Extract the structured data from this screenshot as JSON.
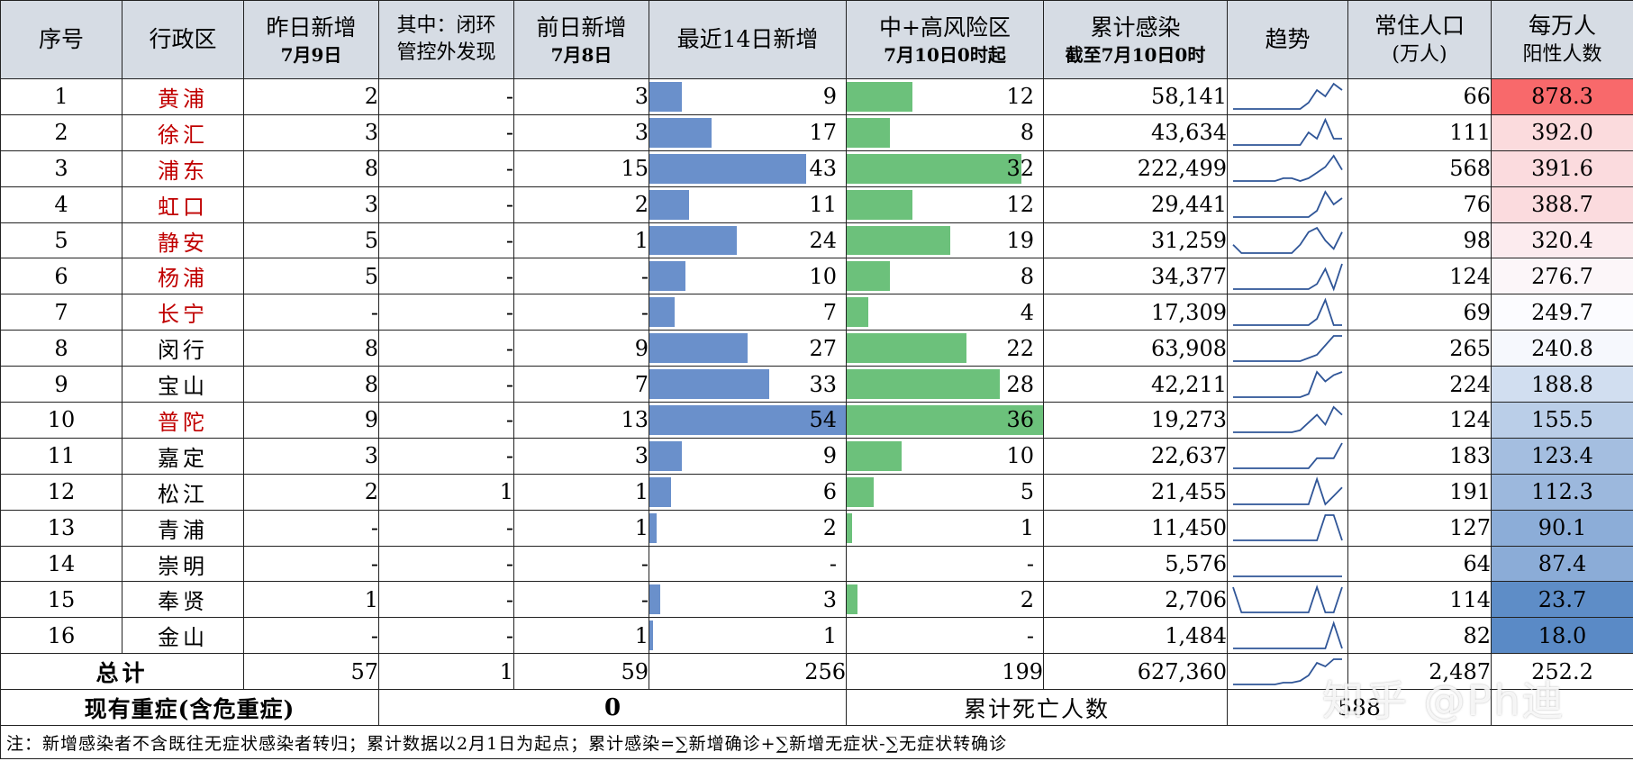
{
  "headers": {
    "seq": "序号",
    "district": "行政区",
    "yesterday_l1": "昨日新增",
    "yesterday_l2": "7月9日",
    "closed_l1": "其中：闭环",
    "closed_l2": "管控外发现",
    "daybefore_l1": "前日新增",
    "daybefore_l2": "7月8日",
    "recent14": "最近14日新增",
    "risk_l1": "中+高风险区",
    "risk_l2": "7月10日0时起",
    "cumulative_l1": "累计感染",
    "cumulative_l2": "截至7月10日0时",
    "trend": "趋势",
    "pop_l1": "常住人口",
    "pop_l2": "(万人)",
    "perm_l1": "每万人",
    "perm_l2": "阳性人数"
  },
  "rows": [
    {
      "seq": "1",
      "district": "黄浦",
      "red": true,
      "yesterday": "2",
      "closed": "-",
      "daybefore": "3",
      "recent14": "9",
      "recent14_value": 9,
      "risk": "12",
      "risk_value": 12,
      "cumulative": "58,141",
      "trend": [
        0,
        0,
        0,
        0,
        0,
        0,
        0,
        0,
        0,
        1,
        3,
        2,
        4,
        3
      ],
      "population": "66",
      "per_10k": "878.3",
      "per_10k_value": 878.3
    },
    {
      "seq": "2",
      "district": "徐汇",
      "red": true,
      "yesterday": "3",
      "closed": "-",
      "daybefore": "3",
      "recent14": "17",
      "recent14_value": 17,
      "risk": "8",
      "risk_value": 8,
      "cumulative": "43,634",
      "trend": [
        0,
        0,
        0,
        0,
        0,
        0,
        0,
        0,
        0,
        2,
        1,
        4,
        1,
        1
      ],
      "population": "111",
      "per_10k": "392.0",
      "per_10k_value": 392.0
    },
    {
      "seq": "3",
      "district": "浦东",
      "red": true,
      "yesterday": "8",
      "closed": "-",
      "daybefore": "15",
      "recent14": "43",
      "recent14_value": 43,
      "risk": "32",
      "risk_value": 32,
      "cumulative": "222,499",
      "trend": [
        0,
        0,
        0,
        0,
        0,
        0,
        1,
        1,
        0,
        1,
        3,
        5,
        9,
        4
      ],
      "population": "568",
      "per_10k": "391.6",
      "per_10k_value": 391.6
    },
    {
      "seq": "4",
      "district": "虹口",
      "red": true,
      "yesterday": "3",
      "closed": "-",
      "daybefore": "2",
      "recent14": "11",
      "recent14_value": 11,
      "risk": "12",
      "risk_value": 12,
      "cumulative": "29,441",
      "trend": [
        0,
        0,
        0,
        0,
        0,
        0,
        0,
        0,
        0,
        0,
        1,
        4,
        2,
        3
      ],
      "population": "76",
      "per_10k": "388.7",
      "per_10k_value": 388.7
    },
    {
      "seq": "5",
      "district": "静安",
      "red": true,
      "yesterday": "5",
      "closed": "-",
      "daybefore": "1",
      "recent14": "24",
      "recent14_value": 24,
      "risk": "19",
      "risk_value": 19,
      "cumulative": "31,259",
      "trend": [
        2,
        0,
        0,
        0,
        0,
        0,
        0,
        0,
        2,
        5,
        6,
        3,
        1,
        5
      ],
      "population": "98",
      "per_10k": "320.4",
      "per_10k_value": 320.4
    },
    {
      "seq": "6",
      "district": "杨浦",
      "red": true,
      "yesterday": "5",
      "closed": "-",
      "daybefore": "-",
      "recent14": "10",
      "recent14_value": 10,
      "risk": "8",
      "risk_value": 8,
      "cumulative": "34,377",
      "trend": [
        0,
        0,
        0,
        0,
        0,
        0,
        0,
        0,
        0,
        0,
        1,
        4,
        0,
        5
      ],
      "population": "124",
      "per_10k": "276.7",
      "per_10k_value": 276.7
    },
    {
      "seq": "7",
      "district": "长宁",
      "red": true,
      "yesterday": "-",
      "closed": "-",
      "daybefore": "-",
      "recent14": "7",
      "recent14_value": 7,
      "risk": "4",
      "risk_value": 4,
      "cumulative": "17,309",
      "trend": [
        0,
        0,
        0,
        0,
        0,
        0,
        0,
        0,
        0,
        0,
        1,
        4,
        0,
        0
      ],
      "population": "69",
      "per_10k": "249.7",
      "per_10k_value": 249.7
    },
    {
      "seq": "8",
      "district": "闵行",
      "red": false,
      "yesterday": "8",
      "closed": "-",
      "daybefore": "9",
      "recent14": "27",
      "recent14_value": 27,
      "risk": "22",
      "risk_value": 22,
      "cumulative": "63,908",
      "trend": [
        0,
        0,
        0,
        0,
        0,
        0,
        0,
        0,
        0,
        1,
        2,
        5,
        8,
        8
      ],
      "population": "265",
      "per_10k": "240.8",
      "per_10k_value": 240.8
    },
    {
      "seq": "9",
      "district": "宝山",
      "red": false,
      "yesterday": "8",
      "closed": "-",
      "daybefore": "7",
      "recent14": "33",
      "recent14_value": 33,
      "risk": "28",
      "risk_value": 28,
      "cumulative": "42,211",
      "trend": [
        0,
        0,
        0,
        0,
        0,
        0,
        0,
        0,
        0,
        1,
        8,
        5,
        7,
        8
      ],
      "population": "224",
      "per_10k": "188.8",
      "per_10k_value": 188.8
    },
    {
      "seq": "10",
      "district": "普陀",
      "red": true,
      "yesterday": "9",
      "closed": "-",
      "daybefore": "13",
      "recent14": "54",
      "recent14_value": 54,
      "risk": "36",
      "risk_value": 36,
      "cumulative": "19,273",
      "trend": [
        0,
        0,
        0,
        0,
        0,
        0,
        0,
        0,
        1,
        5,
        9,
        4,
        13,
        9
      ],
      "population": "124",
      "per_10k": "155.5",
      "per_10k_value": 155.5
    },
    {
      "seq": "11",
      "district": "嘉定",
      "red": false,
      "yesterday": "3",
      "closed": "-",
      "daybefore": "3",
      "recent14": "9",
      "recent14_value": 9,
      "risk": "10",
      "risk_value": 10,
      "cumulative": "22,637",
      "trend": [
        0,
        0,
        0,
        0,
        0,
        0,
        0,
        0,
        0,
        0,
        2,
        2,
        2,
        5
      ],
      "population": "183",
      "per_10k": "123.4",
      "per_10k_value": 123.4
    },
    {
      "seq": "12",
      "district": "松江",
      "red": false,
      "yesterday": "2",
      "closed": "1",
      "daybefore": "1",
      "recent14": "6",
      "recent14_value": 6,
      "risk": "5",
      "risk_value": 5,
      "cumulative": "21,455",
      "trend": [
        0,
        0,
        0,
        0,
        0,
        0,
        0,
        0,
        0,
        0,
        3,
        0,
        1,
        2
      ],
      "population": "191",
      "per_10k": "112.3",
      "per_10k_value": 112.3
    },
    {
      "seq": "13",
      "district": "青浦",
      "red": false,
      "yesterday": "-",
      "closed": "-",
      "daybefore": "1",
      "recent14": "2",
      "recent14_value": 2,
      "risk": "1",
      "risk_value": 1,
      "cumulative": "11,450",
      "trend": [
        0,
        0,
        0,
        0,
        0,
        0,
        0,
        0,
        0,
        0,
        0,
        1,
        1,
        0
      ],
      "population": "127",
      "per_10k": "90.1",
      "per_10k_value": 90.1
    },
    {
      "seq": "14",
      "district": "崇明",
      "red": false,
      "yesterday": "-",
      "closed": "-",
      "daybefore": "-",
      "recent14": "-",
      "recent14_value": 0,
      "risk": "-",
      "risk_value": 0,
      "cumulative": "5,576",
      "trend": [
        0,
        0,
        0,
        0,
        0,
        0,
        0,
        0,
        0,
        0,
        0,
        0,
        0,
        0
      ],
      "population": "64",
      "per_10k": "87.4",
      "per_10k_value": 87.4
    },
    {
      "seq": "15",
      "district": "奉贤",
      "red": false,
      "yesterday": "1",
      "closed": "-",
      "daybefore": "-",
      "recent14": "3",
      "recent14_value": 3,
      "risk": "2",
      "risk_value": 2,
      "cumulative": "2,706",
      "trend": [
        1,
        0,
        0,
        0,
        0,
        0,
        0,
        0,
        0,
        0,
        1,
        0,
        0,
        1
      ],
      "population": "114",
      "per_10k": "23.7",
      "per_10k_value": 23.7
    },
    {
      "seq": "16",
      "district": "金山",
      "red": false,
      "yesterday": "-",
      "closed": "-",
      "daybefore": "1",
      "recent14": "1",
      "recent14_value": 1,
      "risk": "-",
      "risk_value": 0,
      "cumulative": "1,484",
      "trend": [
        0,
        0,
        0,
        0,
        0,
        0,
        0,
        0,
        0,
        0,
        0,
        0,
        1,
        0
      ],
      "population": "82",
      "per_10k": "18.0",
      "per_10k_value": 18.0
    }
  ],
  "total": {
    "label": "总计",
    "yesterday": "57",
    "closed": "1",
    "daybefore": "59",
    "recent14": "256",
    "risk": "199",
    "cumulative": "627,360",
    "trend": [
      0,
      0,
      0,
      0,
      0,
      0,
      1,
      1,
      2,
      5,
      12,
      10,
      14,
      14
    ],
    "population": "2,487",
    "per_10k": "252.2"
  },
  "severe": {
    "label": "现有重症(含危重症)",
    "value": "0",
    "death_label": "累计死亡人数",
    "death_value": "588"
  },
  "note": "注：新增感染者不含既往无症状感染者转归；累计数据以2月1日为起点；累计感染=∑新增确诊+∑新增无症状-∑无症状转确诊",
  "watermark": "知乎 @Ph迪",
  "colors": {
    "header_bg": "#d6dce4",
    "bar_blue": "#6a90cb",
    "bar_green": "#6cc17b",
    "district_red": "#c00000",
    "heat_high": "#f8696b",
    "heat_mid": "#fcfcff",
    "heat_low": "#5a8ac6",
    "trend_line": "#2f5597"
  }
}
